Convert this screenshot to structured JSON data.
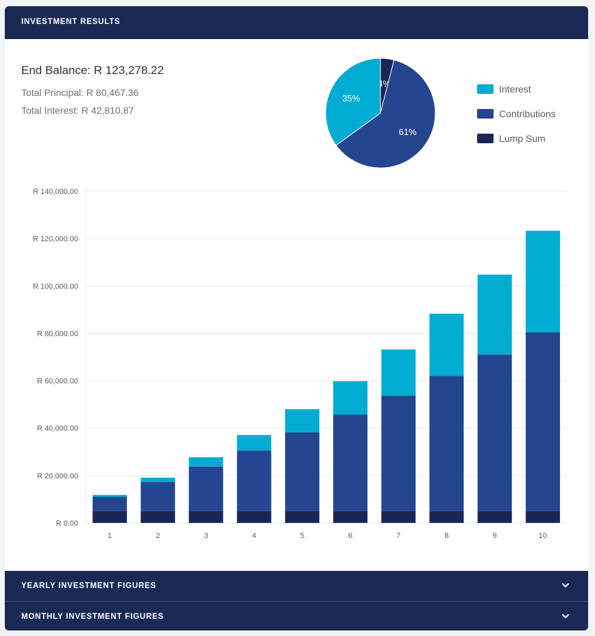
{
  "header": {
    "title": "INVESTMENT RESULTS"
  },
  "summary": {
    "end_balance": "End Balance: R 123,278.22",
    "total_principal": "Total Principal: R 80,467.36",
    "total_interest": "Total Interest: R 42,810.87"
  },
  "legend": [
    {
      "label": "Interest",
      "color": "#00acd2"
    },
    {
      "label": "Contributions",
      "color": "#24468f"
    },
    {
      "label": "Lump Sum",
      "color": "#1a2756"
    }
  ],
  "accordions": [
    {
      "label": "YEARLY INVESTMENT FIGURES",
      "icon": "chevron-down-icon"
    },
    {
      "label": "MONTHLY INVESTMENT FIGURES",
      "icon": "chevron-down-icon"
    }
  ],
  "chart_data": [
    {
      "type": "pie",
      "slices": [
        {
          "name": "Interest",
          "value": 35,
          "label": "35%",
          "color": "#00acd2"
        },
        {
          "name": "Contributions",
          "value": 61,
          "label": "61%",
          "color": "#24468f"
        },
        {
          "name": "Lump Sum",
          "value": 4,
          "label": "4%",
          "color": "#1a2756"
        }
      ]
    },
    {
      "type": "bar",
      "stacked": true,
      "categories": [
        "1",
        "2",
        "3",
        "4",
        "5",
        "6",
        "7",
        "8",
        "9",
        "10"
      ],
      "series": [
        {
          "name": "Lump Sum",
          "color": "#1a2756",
          "values": [
            5000,
            5000,
            5000,
            5000,
            5000,
            5000,
            5000,
            5000,
            5000,
            5000
          ]
        },
        {
          "name": "Contributions",
          "color": "#24468f",
          "values": [
            6000,
            12300,
            18800,
            25500,
            33200,
            40700,
            48700,
            57100,
            66100,
            75500
          ]
        },
        {
          "name": "Interest",
          "color": "#00acd2",
          "values": [
            800,
            1800,
            3900,
            6600,
            9800,
            14100,
            19500,
            26200,
            33700,
            42800
          ]
        }
      ],
      "ylim": [
        0,
        140000
      ],
      "yticks": [
        "R 0.00",
        "R 20,000.00",
        "R 40,000.00",
        "R 60,000.00",
        "R 80,000.00",
        "R 100,000.00",
        "R 120,000.00",
        "R 140,000.00"
      ],
      "ytick_values": [
        0,
        20000,
        40000,
        60000,
        80000,
        100000,
        120000,
        140000
      ],
      "grid": true
    }
  ]
}
